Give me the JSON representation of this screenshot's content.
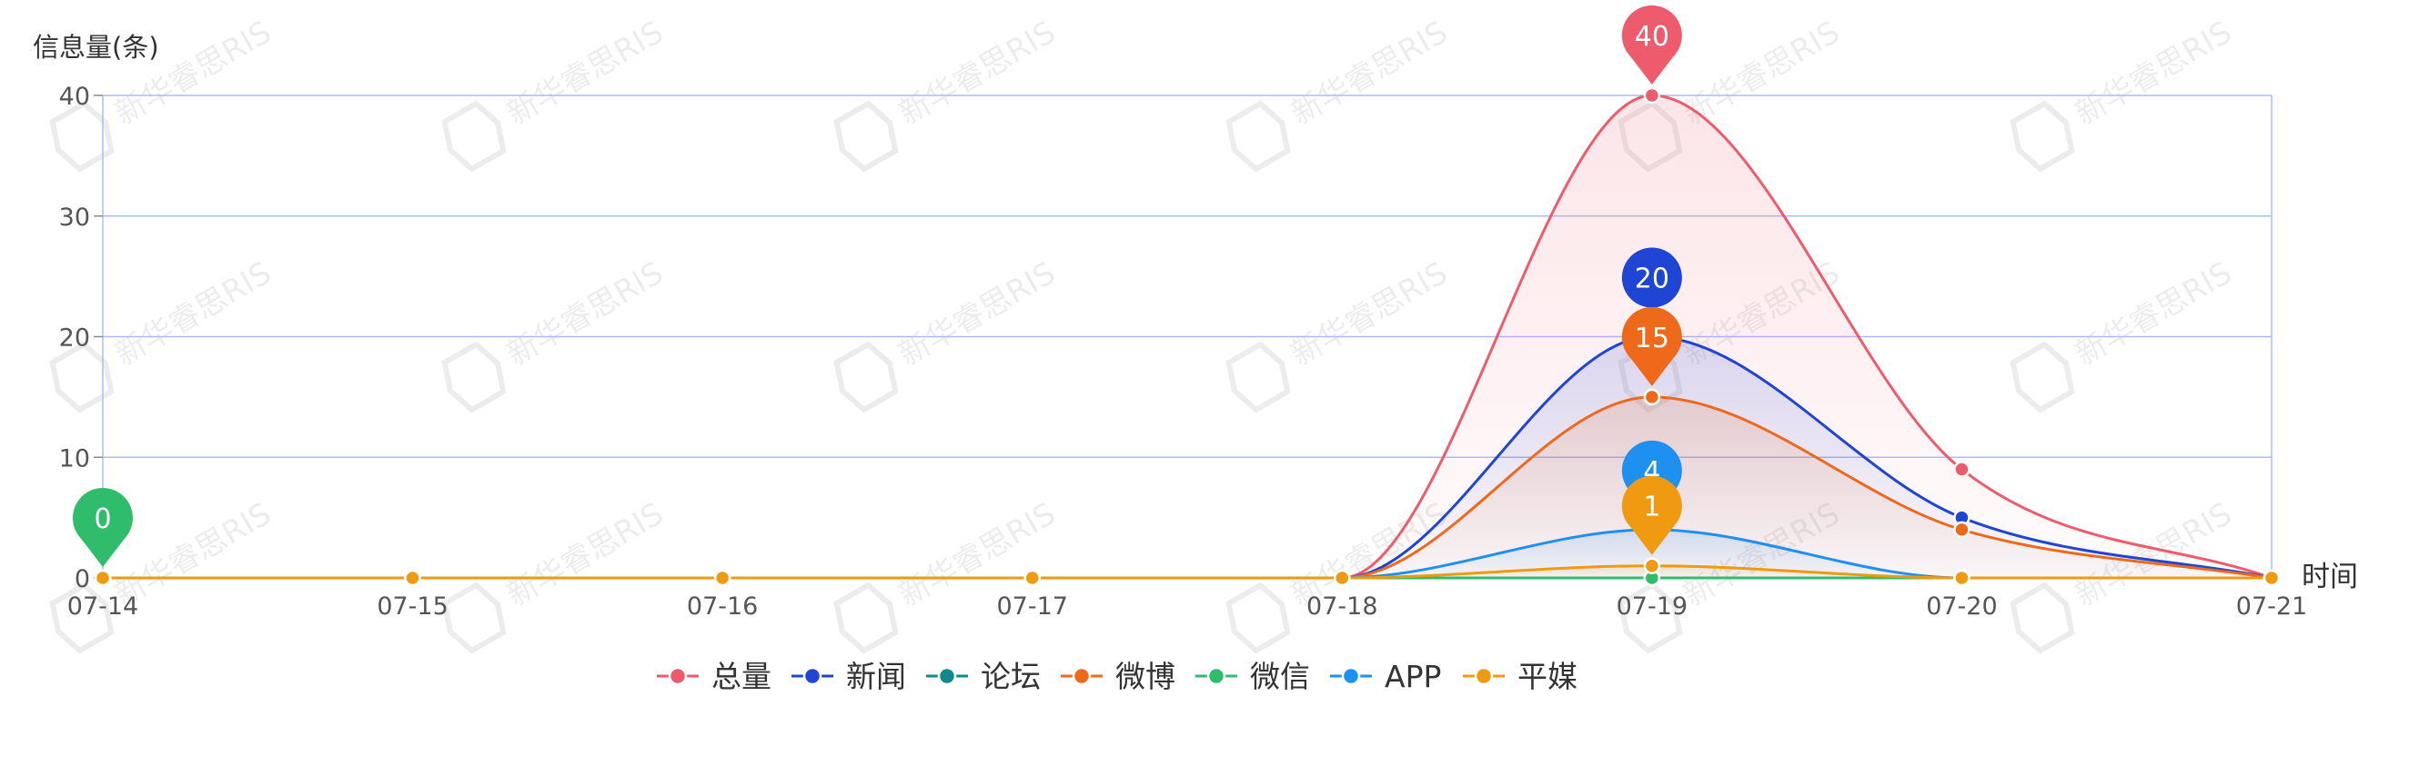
{
  "chart_data": {
    "type": "line",
    "ylabel": "信息量(条)",
    "xlabel": "时间",
    "ylim": [
      0,
      40
    ],
    "yticks": [
      0,
      10,
      20,
      30,
      40
    ],
    "categories": [
      "07-14",
      "07-15",
      "07-16",
      "07-17",
      "07-18",
      "07-19",
      "07-20",
      "07-21"
    ],
    "smooth": true,
    "grid": true,
    "legend_position": "bottom",
    "series": [
      {
        "name": "总量",
        "color": "#ee5b6c",
        "values": [
          0,
          0,
          0,
          0,
          0,
          40,
          9,
          0
        ],
        "area": true
      },
      {
        "name": "新闻",
        "color": "#1e45d4",
        "values": [
          0,
          0,
          0,
          0,
          0,
          20,
          5,
          0
        ],
        "area": true
      },
      {
        "name": "论坛",
        "color": "#0f8a8a",
        "values": [
          0,
          0,
          0,
          0,
          0,
          0,
          0,
          0
        ],
        "area": false
      },
      {
        "name": "微博",
        "color": "#ee6a1a",
        "values": [
          0,
          0,
          0,
          0,
          0,
          15,
          4,
          0
        ],
        "area": true
      },
      {
        "name": "微信",
        "color": "#2fbd6c",
        "values": [
          0,
          0,
          0,
          0,
          0,
          0,
          0,
          0
        ],
        "area": false
      },
      {
        "name": "APP",
        "color": "#1e90f0",
        "values": [
          0,
          0,
          0,
          0,
          0,
          4,
          0,
          0
        ],
        "area": true
      },
      {
        "name": "平媒",
        "color": "#ef9a10",
        "values": [
          0,
          0,
          0,
          0,
          0,
          1,
          0,
          0
        ],
        "area": true
      }
    ],
    "annotations": [
      {
        "series": "总量",
        "category": "07-19",
        "value": 40,
        "label": "40",
        "shape": "pin"
      },
      {
        "series": "新闻",
        "category": "07-19",
        "value": 20,
        "label": "20",
        "shape": "circle"
      },
      {
        "series": "微博",
        "category": "07-19",
        "value": 15,
        "label": "15",
        "shape": "pin"
      },
      {
        "series": "APP",
        "category": "07-19",
        "value": 4,
        "label": "4",
        "shape": "circle"
      },
      {
        "series": "平媒",
        "category": "07-19",
        "value": 1,
        "label": "1",
        "shape": "pin"
      },
      {
        "series": "微信",
        "category": "07-14",
        "value": 0,
        "label": "0",
        "shape": "pin"
      }
    ]
  },
  "watermark": {
    "text": "新华睿思RIS"
  }
}
